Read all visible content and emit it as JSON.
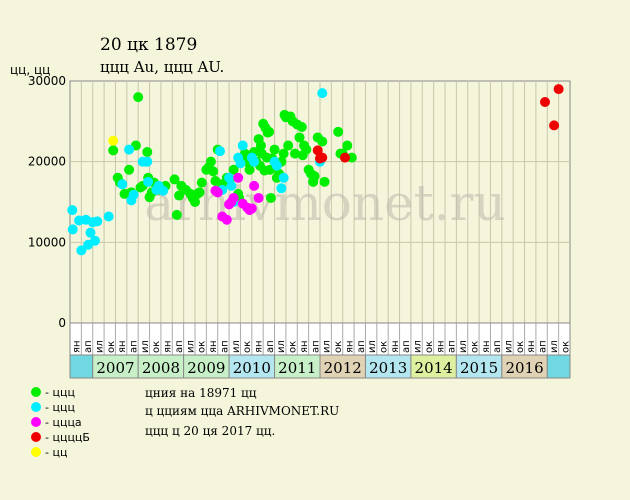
{
  "title": "20 цк 1879",
  "subtitle": "ццц Au, ццц AU.",
  "watermark": "arhivmonet.ru",
  "notes": [
    "цния на 18971 цц",
    "ц цциям цца ARHIVMONET.RU",
    "ццц ц 20 ця 2017 цц."
  ],
  "colors": {
    "green": "#00ee00",
    "cyan": "#00eeff",
    "magenta": "#ff00ff",
    "red": "#ee0000",
    "yellow": "#ffff00",
    "plot_bg": "#f5f5dc",
    "grid": "#c8c8a8",
    "band_green": "#c8f0c8",
    "band_blue": "#b4e6f0",
    "band_tan": "#e0d2b4",
    "band_lime": "#dcf0a0",
    "edge": "#6fd8e0"
  },
  "chart_data": {
    "type": "scatter",
    "ylabel": "цц, цц",
    "ylim": [
      0,
      30000
    ],
    "yticks": [
      0,
      10000,
      20000,
      30000
    ],
    "xlim": [
      2006.0,
      2017.0
    ],
    "grid": true,
    "quarter_labels": [
      "ян",
      "ап",
      "ил",
      "ок"
    ],
    "years": [
      {
        "label": "",
        "start": 2006.0,
        "end": 2006.5,
        "color": "cyan"
      },
      {
        "label": "2007",
        "start": 2006.5,
        "end": 2007.5,
        "color": "green"
      },
      {
        "label": "2008",
        "start": 2007.5,
        "end": 2008.5,
        "color": "green"
      },
      {
        "label": "2009",
        "start": 2008.5,
        "end": 2009.5,
        "color": "green"
      },
      {
        "label": "2010",
        "start": 2009.5,
        "end": 2010.5,
        "color": "blue"
      },
      {
        "label": "2011",
        "start": 2010.5,
        "end": 2011.5,
        "color": "green"
      },
      {
        "label": "2012",
        "start": 2011.5,
        "end": 2012.5,
        "color": "tan"
      },
      {
        "label": "2013",
        "start": 2012.5,
        "end": 2013.5,
        "color": "blue"
      },
      {
        "label": "2014",
        "start": 2013.5,
        "end": 2014.5,
        "color": "lime"
      },
      {
        "label": "2015",
        "start": 2014.5,
        "end": 2015.5,
        "color": "blue"
      },
      {
        "label": "2016",
        "start": 2015.5,
        "end": 2016.5,
        "color": "tan"
      },
      {
        "label": "",
        "start": 2016.5,
        "end": 2017.0,
        "color": "cyan"
      }
    ],
    "legend": [
      {
        "color": "green",
        "label": "- ццц"
      },
      {
        "color": "cyan",
        "label": "- ццц"
      },
      {
        "color": "magenta",
        "label": "- ццца"
      },
      {
        "color": "red",
        "label": "- ццццБ"
      },
      {
        "color": "yellow",
        "label": "- цц"
      }
    ],
    "series": [
      {
        "color": "green",
        "points": [
          [
            2006.95,
            21400
          ],
          [
            2007.05,
            18000
          ],
          [
            2007.1,
            17400
          ],
          [
            2007.2,
            16000
          ],
          [
            2007.3,
            19000
          ],
          [
            2007.35,
            16200
          ],
          [
            2007.45,
            22000
          ],
          [
            2007.5,
            28000
          ],
          [
            2007.55,
            16800
          ],
          [
            2007.6,
            17000
          ],
          [
            2007.7,
            21200
          ],
          [
            2007.72,
            18000
          ],
          [
            2007.75,
            15600
          ],
          [
            2007.8,
            16200
          ],
          [
            2007.85,
            17400
          ],
          [
            2007.95,
            16500
          ],
          [
            2008.1,
            17000
          ],
          [
            2008.3,
            17800
          ],
          [
            2008.35,
            13400
          ],
          [
            2008.4,
            15800
          ],
          [
            2008.45,
            17000
          ],
          [
            2008.55,
            16500
          ],
          [
            2008.65,
            16000
          ],
          [
            2008.7,
            15500
          ],
          [
            2008.75,
            15000
          ],
          [
            2008.8,
            16000
          ],
          [
            2008.85,
            16200
          ],
          [
            2008.9,
            17400
          ],
          [
            2009.0,
            19000
          ],
          [
            2009.05,
            19300
          ],
          [
            2009.1,
            20000
          ],
          [
            2009.15,
            18800
          ],
          [
            2009.2,
            17600
          ],
          [
            2009.25,
            21500
          ],
          [
            2009.35,
            17200
          ],
          [
            2009.45,
            18000
          ],
          [
            2009.5,
            17500
          ],
          [
            2009.6,
            19000
          ],
          [
            2009.7,
            16000
          ],
          [
            2009.72,
            15500
          ],
          [
            2009.8,
            20500
          ],
          [
            2009.85,
            21000
          ],
          [
            2009.9,
            20000
          ],
          [
            2009.95,
            19000
          ],
          [
            2010.0,
            20500
          ],
          [
            2010.05,
            21200
          ],
          [
            2010.1,
            20000
          ],
          [
            2010.15,
            22800
          ],
          [
            2010.2,
            22000
          ],
          [
            2010.25,
            24700
          ],
          [
            2010.3,
            24200
          ],
          [
            2010.35,
            23600
          ],
          [
            2010.38,
            23700
          ],
          [
            2010.4,
            19000
          ],
          [
            2010.45,
            20400
          ],
          [
            2010.5,
            21500
          ],
          [
            2010.55,
            18000
          ],
          [
            2010.6,
            18500
          ],
          [
            2010.65,
            20000
          ],
          [
            2010.7,
            21000
          ],
          [
            2010.72,
            25800
          ],
          [
            2010.75,
            25500
          ],
          [
            2010.8,
            22000
          ],
          [
            2010.85,
            25600
          ],
          [
            2010.9,
            25000
          ],
          [
            2010.95,
            21000
          ],
          [
            2011.0,
            24600
          ],
          [
            2011.05,
            23000
          ],
          [
            2011.1,
            24300
          ],
          [
            2011.15,
            22000
          ],
          [
            2011.2,
            21500
          ],
          [
            2011.25,
            19000
          ],
          [
            2011.3,
            18500
          ],
          [
            2011.35,
            17500
          ],
          [
            2011.45,
            23000
          ],
          [
            2011.55,
            22500
          ],
          [
            2011.6,
            17500
          ],
          [
            2010.22,
            21000
          ],
          [
            2010.28,
            18900
          ],
          [
            2010.33,
            20500
          ],
          [
            2010.18,
            19500
          ],
          [
            2010.42,
            15500
          ],
          [
            2011.38,
            18200
          ],
          [
            2011.12,
            20800
          ],
          [
            2011.9,
            23700
          ],
          [
            2011.95,
            21000
          ],
          [
            2012.0,
            21000
          ],
          [
            2012.1,
            22000
          ],
          [
            2012.2,
            20500
          ]
        ]
      },
      {
        "color": "cyan",
        "points": [
          [
            2006.05,
            14000
          ],
          [
            2006.06,
            11600
          ],
          [
            2006.2,
            12700
          ],
          [
            2006.25,
            9000
          ],
          [
            2006.35,
            12800
          ],
          [
            2006.4,
            9700
          ],
          [
            2006.45,
            11200
          ],
          [
            2006.5,
            12500
          ],
          [
            2006.55,
            10200
          ],
          [
            2006.6,
            12600
          ],
          [
            2006.85,
            13200
          ],
          [
            2007.15,
            17200
          ],
          [
            2007.3,
            21500
          ],
          [
            2007.35,
            15200
          ],
          [
            2007.4,
            15900
          ],
          [
            2007.6,
            20000
          ],
          [
            2007.7,
            20000
          ],
          [
            2007.72,
            17500
          ],
          [
            2007.9,
            16500
          ],
          [
            2007.95,
            17000
          ],
          [
            2008.05,
            16400
          ],
          [
            2009.3,
            21300
          ],
          [
            2009.35,
            16500
          ],
          [
            2009.5,
            18000
          ],
          [
            2009.55,
            17000
          ],
          [
            2009.6,
            15000
          ],
          [
            2009.7,
            20500
          ],
          [
            2009.75,
            19800
          ],
          [
            2009.8,
            22000
          ],
          [
            2010.0,
            20500
          ],
          [
            2010.05,
            20000
          ],
          [
            2010.5,
            20000
          ],
          [
            2010.55,
            19500
          ],
          [
            2010.65,
            16700
          ],
          [
            2010.7,
            18000
          ],
          [
            2011.5,
            20000
          ],
          [
            2011.55,
            28500
          ]
        ]
      },
      {
        "color": "magenta",
        "points": [
          [
            2009.2,
            16400
          ],
          [
            2009.25,
            16200
          ],
          [
            2009.35,
            13200
          ],
          [
            2009.45,
            12800
          ],
          [
            2009.5,
            14700
          ],
          [
            2009.55,
            15000
          ],
          [
            2009.6,
            15500
          ],
          [
            2009.7,
            18000
          ],
          [
            2009.8,
            14800
          ],
          [
            2009.9,
            14300
          ],
          [
            2009.95,
            14000
          ],
          [
            2010.0,
            14200
          ],
          [
            2010.05,
            17000
          ],
          [
            2010.15,
            15500
          ]
        ]
      },
      {
        "color": "red",
        "points": [
          [
            2011.45,
            21400
          ],
          [
            2011.5,
            20400
          ],
          [
            2011.55,
            20500
          ],
          [
            2012.05,
            20500
          ],
          [
            2016.45,
            27400
          ],
          [
            2016.65,
            24500
          ],
          [
            2016.75,
            29000
          ]
        ]
      },
      {
        "color": "yellow",
        "points": [
          [
            2006.95,
            22600
          ]
        ]
      }
    ]
  }
}
